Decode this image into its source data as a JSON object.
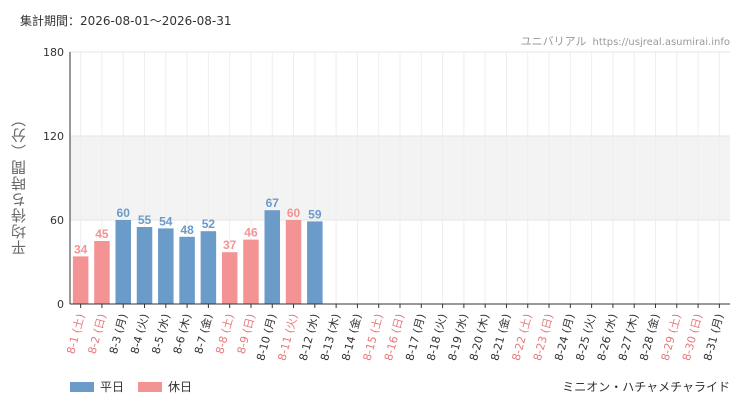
{
  "period_label": "集計期間：2026-08-01～2026-08-31",
  "site_name": "ユニバリアル",
  "site_url": "https://usjreal.asumirai.info",
  "attraction_name": "ミニオン・ハチャメチャライド",
  "colors": {
    "weekday": "#6b9bc9",
    "holiday": "#f49394",
    "grid": "#e4e4e4",
    "band": "#f3f3f3"
  },
  "chart_data": {
    "type": "bar",
    "ylabel": "平均待ち時間（分）",
    "ylim": [
      0,
      180
    ],
    "yticks": [
      0,
      60,
      120,
      180
    ],
    "categories": [
      "8-1 (土)",
      "8-2 (日)",
      "8-3 (月)",
      "8-4 (火)",
      "8-5 (水)",
      "8-6 (木)",
      "8-7 (金)",
      "8-8 (土)",
      "8-9 (日)",
      "8-10 (月)",
      "8-11 (火)",
      "8-12 (水)",
      "8-13 (木)",
      "8-14 (金)",
      "8-15 (土)",
      "8-16 (日)",
      "8-17 (月)",
      "8-18 (火)",
      "8-19 (水)",
      "8-20 (木)",
      "8-21 (金)",
      "8-22 (土)",
      "8-23 (日)",
      "8-24 (月)",
      "8-25 (火)",
      "8-26 (水)",
      "8-27 (木)",
      "8-28 (金)",
      "8-29 (土)",
      "8-30 (日)",
      "8-31 (月)"
    ],
    "day_type": [
      "holiday",
      "holiday",
      "weekday",
      "weekday",
      "weekday",
      "weekday",
      "weekday",
      "holiday",
      "holiday",
      "weekday",
      "holiday",
      "weekday",
      "weekday",
      "weekday",
      "holiday",
      "holiday",
      "weekday",
      "weekday",
      "weekday",
      "weekday",
      "weekday",
      "holiday",
      "holiday",
      "weekday",
      "weekday",
      "weekday",
      "weekday",
      "weekday",
      "holiday",
      "holiday",
      "weekday"
    ],
    "values": [
      34,
      45,
      60,
      55,
      54,
      48,
      52,
      37,
      46,
      67,
      60,
      59,
      null,
      null,
      null,
      null,
      null,
      null,
      null,
      null,
      null,
      null,
      null,
      null,
      null,
      null,
      null,
      null,
      null,
      null,
      null
    ],
    "legend": [
      {
        "key": "weekday",
        "label": "平日"
      },
      {
        "key": "holiday",
        "label": "休日"
      }
    ],
    "grid": true,
    "legend_position": "bottom-left"
  }
}
